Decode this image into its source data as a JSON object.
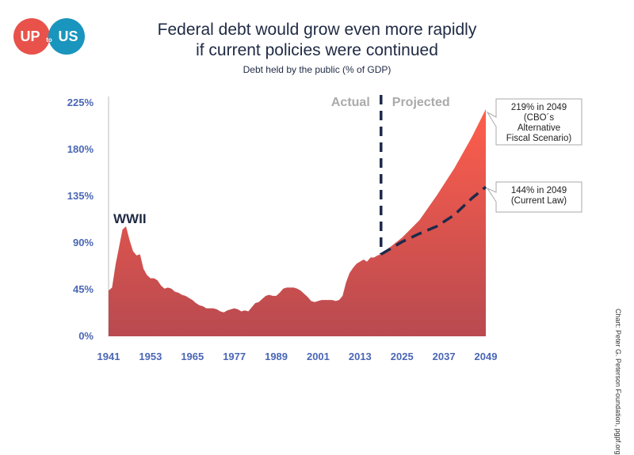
{
  "logo": {
    "text_up": "UP",
    "text_to": "to",
    "text_us": "US",
    "color_left": "#e8524a",
    "color_right": "#1a95bd"
  },
  "title_line1": "Federal debt would grow even more rapidly",
  "title_line2": "if current policies were continued",
  "subtitle": "Debt held by the public (% of GDP)",
  "credit": "Chart: Peter G. Peterson Foundation, pgpf.org",
  "chart_data": {
    "type": "area",
    "title": "Federal debt would grow even more rapidly if current policies were continued",
    "ylabel": "Debt held by the public (% of GDP)",
    "ylim": [
      0,
      225
    ],
    "yticks": [
      "0%",
      "45%",
      "90%",
      "135%",
      "180%",
      "225%"
    ],
    "ytick_values": [
      0,
      45,
      90,
      135,
      180,
      225
    ],
    "xticks": [
      "1941",
      "1953",
      "1965",
      "1977",
      "1989",
      "2001",
      "2013",
      "2025",
      "2037",
      "2049"
    ],
    "xtick_values": [
      1941,
      1953,
      1965,
      1977,
      1989,
      2001,
      2013,
      2025,
      2037,
      2049
    ],
    "grid": false,
    "section_labels": {
      "actual": "Actual",
      "projected": "Projected"
    },
    "divider_year": 2019,
    "annotations": {
      "wwii": "WWII",
      "alt_label_lines": [
        "219% in 2049",
        "(CBO´s",
        "Alternative",
        "Fiscal Scenario)"
      ],
      "law_label_lines": [
        "144% in 2049",
        "(Current Law)"
      ]
    },
    "colors": {
      "area_top": "#ff5e4c",
      "area_bottom": "#b84a50",
      "dash": "#1f2a4a",
      "axis_label": "#4a66b5",
      "section_label": "#aaaaaa"
    },
    "series": [
      {
        "name": "Debt held by the public (actual, then CBO Alternative Fiscal Scenario)",
        "x": [
          1941,
          1942,
          1943,
          1944,
          1945,
          1946,
          1947,
          1948,
          1949,
          1950,
          1951,
          1952,
          1953,
          1954,
          1955,
          1956,
          1957,
          1958,
          1959,
          1960,
          1961,
          1962,
          1963,
          1964,
          1965,
          1966,
          1967,
          1968,
          1969,
          1970,
          1971,
          1972,
          1973,
          1974,
          1975,
          1976,
          1977,
          1978,
          1979,
          1980,
          1981,
          1982,
          1983,
          1984,
          1985,
          1986,
          1987,
          1988,
          1989,
          1990,
          1991,
          1992,
          1993,
          1994,
          1995,
          1996,
          1997,
          1998,
          1999,
          2000,
          2001,
          2002,
          2003,
          2004,
          2005,
          2006,
          2007,
          2008,
          2009,
          2010,
          2011,
          2012,
          2013,
          2014,
          2015,
          2016,
          2017,
          2018,
          2019,
          2025,
          2030,
          2035,
          2040,
          2045,
          2049
        ],
        "values": [
          44,
          47,
          69,
          86,
          103,
          106,
          93,
          82,
          78,
          79,
          65,
          59,
          56,
          56,
          54,
          49,
          46,
          47,
          46,
          43,
          42,
          40,
          39,
          37,
          35,
          32,
          30,
          29,
          27,
          27,
          27,
          26,
          24,
          23,
          25,
          26,
          27,
          26,
          24,
          25,
          24,
          28,
          32,
          33,
          36,
          39,
          40,
          39,
          39,
          42,
          46,
          47,
          47,
          47,
          46,
          44,
          41,
          38,
          34,
          33,
          34,
          35,
          35,
          35,
          35,
          34,
          35,
          39,
          52,
          61,
          66,
          70,
          72,
          74,
          72,
          76,
          76,
          78,
          79,
          95,
          112,
          136,
          162,
          192,
          219
        ]
      },
      {
        "name": "144% in 2049 (Current Law)",
        "x": [
          2019,
          2025,
          2030,
          2035,
          2040,
          2045,
          2049
        ],
        "values": [
          79,
          91,
          99,
          106,
          117,
          133,
          144
        ]
      }
    ]
  }
}
